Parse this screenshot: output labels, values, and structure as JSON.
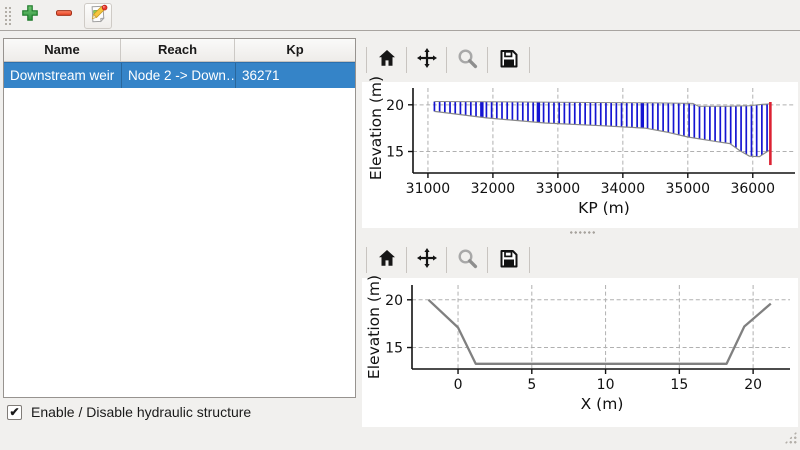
{
  "colors": {
    "selection": "#3584c8",
    "hatch_blue": "#1414d2",
    "profile_gray": "#888888",
    "marker_red": "#dc2233",
    "cross_section_gray": "#808080",
    "grid": "#b0b0b0"
  },
  "main_toolbar": {
    "buttons": [
      {
        "icon": "add-icon"
      },
      {
        "icon": "remove-icon"
      },
      {
        "icon": "edit-icon"
      }
    ]
  },
  "structures_table": {
    "columns": [
      "Name",
      "Reach",
      "Kp"
    ],
    "rows": [
      {
        "name": "Downstream weir",
        "reach": "Node 2 -> Down…",
        "kp": "36271",
        "selected": true
      }
    ]
  },
  "enable_checkbox": {
    "label": "Enable / Disable hydraulic structure",
    "checked": true,
    "glyph": "✔"
  },
  "plot_toolbar": {
    "icons": [
      "home-icon",
      "pan-icon",
      "zoom-icon",
      "save-icon"
    ]
  },
  "chart_data": [
    {
      "type": "area",
      "title": "",
      "xlabel": "KP (m)",
      "ylabel": "Elevation (m)",
      "xlim": [
        30770,
        36650
      ],
      "ylim": [
        12.7,
        21.8
      ],
      "xticks": [
        31000,
        32000,
        33000,
        34000,
        35000,
        36000
      ],
      "yticks": [
        15,
        20
      ],
      "grid": true,
      "hatch_step_m": 80,
      "hatch_range": [
        31100,
        36250
      ],
      "dense_lines_kp": [
        31830,
        32700,
        34300
      ],
      "top_profile": [
        [
          31100,
          20.35
        ],
        [
          32500,
          20.3
        ],
        [
          33500,
          20.25
        ],
        [
          34500,
          20.2
        ],
        [
          35080,
          20.15
        ],
        [
          35160,
          19.85
        ],
        [
          35600,
          19.85
        ],
        [
          35950,
          19.9
        ],
        [
          36150,
          20.05
        ],
        [
          36271,
          20.1
        ]
      ],
      "bottom_profile": [
        [
          31100,
          19.3
        ],
        [
          31900,
          18.6
        ],
        [
          32800,
          18.05
        ],
        [
          33700,
          17.75
        ],
        [
          34350,
          17.5
        ],
        [
          34700,
          17.05
        ],
        [
          35000,
          16.55
        ],
        [
          35450,
          16.05
        ],
        [
          35650,
          15.85
        ],
        [
          35800,
          15.1
        ],
        [
          35950,
          14.5
        ],
        [
          36100,
          14.45
        ],
        [
          36271,
          15.2
        ]
      ],
      "marker_line": {
        "kp": 36271,
        "y0": 13.55,
        "y1": 20.3
      }
    },
    {
      "type": "line",
      "title": "",
      "xlabel": "X (m)",
      "ylabel": "Elevation (m)",
      "xlim": [
        -3.12,
        22.5
      ],
      "ylim": [
        12.75,
        21.55
      ],
      "xticks": [
        0,
        5,
        10,
        15,
        20
      ],
      "yticks": [
        15,
        20
      ],
      "grid": true,
      "points": [
        [
          -2.0,
          20.0
        ],
        [
          0.0,
          17.1
        ],
        [
          1.2,
          13.3
        ],
        [
          18.2,
          13.3
        ],
        [
          19.4,
          17.2
        ],
        [
          21.2,
          19.6
        ]
      ]
    }
  ]
}
